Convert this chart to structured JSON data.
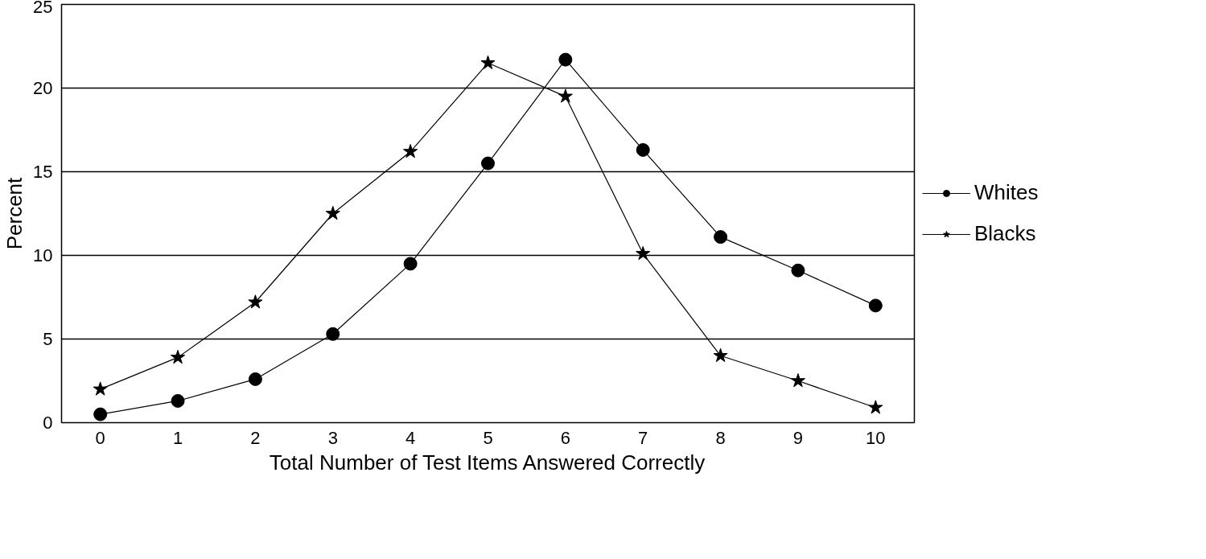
{
  "chart_data": {
    "type": "line",
    "xlabel": "Total Number of Test Items Answered Correctly",
    "ylabel": "Percent",
    "x": [
      0,
      1,
      2,
      3,
      4,
      5,
      6,
      7,
      8,
      9,
      10
    ],
    "series": [
      {
        "name": "Whites",
        "color": "#000000",
        "marker": "circle",
        "values": [
          0.5,
          1.3,
          2.6,
          5.3,
          9.5,
          15.5,
          21.7,
          16.3,
          11.1,
          9.1,
          7.0
        ]
      },
      {
        "name": "Blacks",
        "color": "#000000",
        "marker": "star",
        "values": [
          2.0,
          3.9,
          7.2,
          12.5,
          16.2,
          21.5,
          19.5,
          10.1,
          4.0,
          2.5,
          0.9
        ]
      }
    ],
    "xlim": [
      -0.5,
      10.5
    ],
    "xticks": [
      0,
      1,
      2,
      3,
      4,
      5,
      6,
      7,
      8,
      9,
      10
    ],
    "ylim": [
      0,
      25
    ],
    "yticks": [
      0,
      5,
      10,
      15,
      20,
      25
    ],
    "grid": "y",
    "legend": "right",
    "line_style": "solid"
  }
}
